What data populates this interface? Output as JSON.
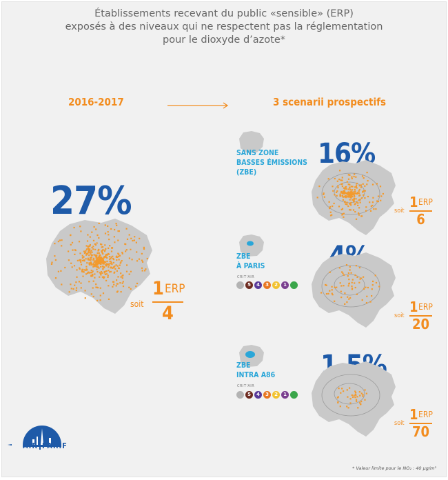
{
  "title": {
    "line1": "Établissements recevant du public «sensible» (ERP)",
    "line2": "exposés à des niveaux qui ne respectent pas la réglementation",
    "line3": "pour le dioxyde d’azote*"
  },
  "current": {
    "period": "2016-2017",
    "percent": "27%",
    "ratio": {
      "soit": "soit",
      "num": "1",
      "unit": "ERP",
      "den": "4"
    }
  },
  "scenarios_title": "3 scenarii prospectifs",
  "scenarios": [
    {
      "label1": "SANS ZONE",
      "label2": "BASSES ÉMISSIONS",
      "label3": "(ZBE)",
      "percent": "16%",
      "ratio": {
        "soit": "soit",
        "num": "1",
        "unit": "ERP",
        "den": "6"
      }
    },
    {
      "label1": "ZBE",
      "label2": "À PARIS",
      "crit_label": "CRIT'AIR",
      "percent": "4%",
      "ratio": {
        "soit": "soit",
        "num": "1",
        "unit": "ERP",
        "den": "20"
      }
    },
    {
      "label1": "ZBE",
      "label2": "INTRA A86",
      "crit_label": "CRIT'AIR",
      "percent": "1,5%",
      "ratio": {
        "soit": "soit",
        "num": "1",
        "unit": "ERP",
        "den": "70"
      }
    }
  ],
  "critair": {
    "badges": [
      "",
      "5",
      "4",
      "3",
      "2",
      "1",
      ""
    ],
    "colors": [
      "#b3b3b3",
      "#6d2a1f",
      "#5a3a9a",
      "#e87722",
      "#f2c230",
      "#7a3f8f",
      "#3aa64a"
    ]
  },
  "colors": {
    "orange": "#f28c1e",
    "blue": "#1e5aa8",
    "light_blue": "#2aa6d8",
    "map_gray": "#c9c9c9"
  },
  "logo": {
    "text_left": "AIR",
    "text_right": "PARIF"
  },
  "footnote": "* Valeur limite pour le NO₂ : 40 µg/m³"
}
